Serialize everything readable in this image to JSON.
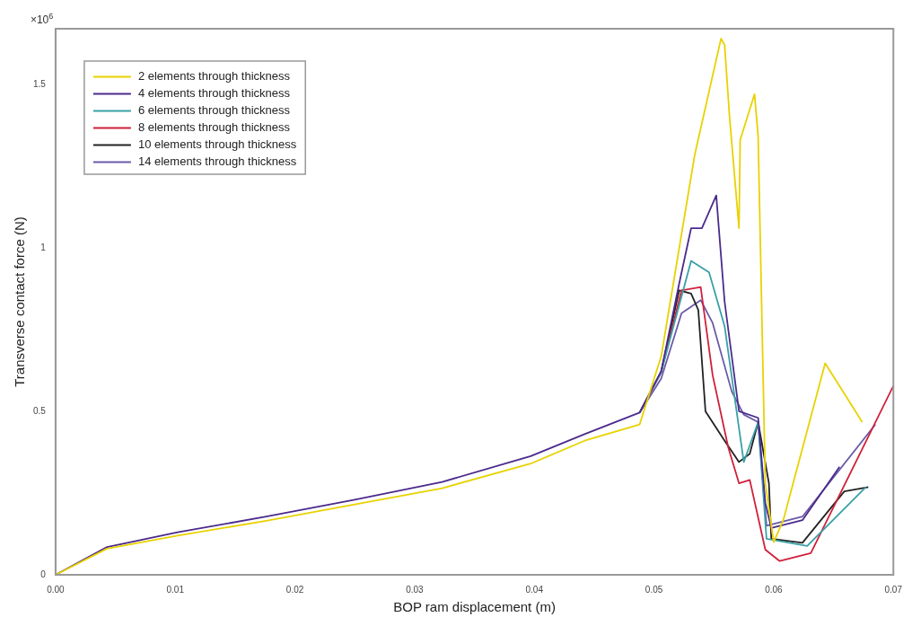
{
  "chart_data": {
    "type": "line",
    "xlabel": "BOP ram displacement (m)",
    "ylabel": "Transverse contact force (N)",
    "annotations": [
      "×10$^{6}$"
    ],
    "xlim": [
      0,
      0.07
    ],
    "xticks": [
      {
        "value": 0,
        "label": "0.00"
      },
      0.01,
      0.02,
      0.03,
      0.04,
      0.05,
      0.06,
      0.07
    ],
    "ylim": [
      0,
      1.67
    ],
    "yticks": [
      0,
      0.5,
      1,
      1.5
    ],
    "grid": false,
    "legend": "top left",
    "marker": "none",
    "line_style": "solid",
    "series": [
      {
        "name": "2 elements through thickness",
        "color": "#e8d200",
        "x": [
          0,
          0.0043,
          0.0102,
          0.0176,
          0.025,
          0.0323,
          0.0397,
          0.0442,
          0.0488,
          0.0506,
          0.0534,
          0.0556,
          0.0559,
          0.0563,
          0.0571,
          0.0572,
          0.0584,
          0.0587,
          0.0593,
          0.06,
          0.0608,
          0.0643,
          0.0674
        ],
        "values": [
          0,
          0.08,
          0.12,
          0.165,
          0.215,
          0.265,
          0.34,
          0.41,
          0.46,
          0.668,
          1.284,
          1.64,
          1.62,
          1.406,
          1.06,
          1.33,
          1.47,
          1.34,
          0.28,
          0.1,
          0.167,
          0.647,
          0.467
        ]
      },
      {
        "name": "4 elements through thickness",
        "color": "#4b2a8c",
        "x": [
          0,
          0.0043,
          0.0102,
          0.0176,
          0.025,
          0.0323,
          0.0397,
          0.0442,
          0.0488,
          0.0506,
          0.0521,
          0.0531,
          0.054,
          0.0552,
          0.0559,
          0.0571,
          0.0587,
          0.0593,
          0.0598,
          0.0624,
          0.0655
        ],
        "values": [
          0,
          0.085,
          0.13,
          0.178,
          0.23,
          0.284,
          0.363,
          0.43,
          0.496,
          0.623,
          0.89,
          1.06,
          1.06,
          1.16,
          0.835,
          0.5,
          0.48,
          0.22,
          0.143,
          0.167,
          0.33
        ]
      },
      {
        "name": "6 elements through thickness",
        "color": "#3aa0a8",
        "x": [
          0.0488,
          0.0506,
          0.0531,
          0.0546,
          0.0559,
          0.0569,
          0.0575,
          0.0587,
          0.0594,
          0.0628,
          0.0677
        ],
        "values": [
          0.496,
          0.62,
          0.96,
          0.925,
          0.76,
          0.5,
          0.345,
          0.467,
          0.11,
          0.088,
          0.268
        ]
      },
      {
        "name": "8 elements through thickness",
        "color": "#d0203a",
        "x": [
          0.0488,
          0.0506,
          0.0523,
          0.0539,
          0.0549,
          0.0562,
          0.0571,
          0.058,
          0.0593,
          0.0605,
          0.0631,
          0.07
        ],
        "values": [
          0.496,
          0.62,
          0.87,
          0.88,
          0.61,
          0.39,
          0.28,
          0.29,
          0.077,
          0.042,
          0.066,
          0.578
        ]
      },
      {
        "name": "10 elements through thickness",
        "color": "#222222",
        "x": [
          0.0488,
          0.0506,
          0.0521,
          0.0531,
          0.0537,
          0.0543,
          0.0559,
          0.0571,
          0.058,
          0.0587,
          0.0596,
          0.0598,
          0.0624,
          0.0659,
          0.0679
        ],
        "values": [
          0.496,
          0.62,
          0.87,
          0.86,
          0.81,
          0.5,
          0.41,
          0.345,
          0.37,
          0.467,
          0.28,
          0.11,
          0.098,
          0.255,
          0.268
        ]
      },
      {
        "name": "14 elements through thickness",
        "color": "#6a5aa8",
        "x": [
          0.0488,
          0.0506,
          0.0523,
          0.0539,
          0.0549,
          0.0565,
          0.0575,
          0.0587,
          0.0594,
          0.0624,
          0.0685
        ],
        "values": [
          0.496,
          0.6,
          0.8,
          0.84,
          0.77,
          0.56,
          0.49,
          0.467,
          0.15,
          0.178,
          0.46
        ]
      }
    ]
  }
}
